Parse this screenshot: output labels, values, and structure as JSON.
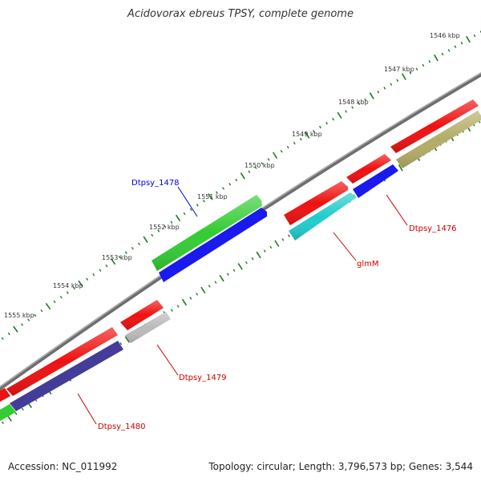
{
  "title": "Acidovorax ebreus TPSY, complete genome",
  "footer": {
    "accession": "Accession: NC_011992",
    "summary": "Topology: circular; Length: 3,796,573 bp; Genes: 3,544"
  },
  "ruler": [
    "1546 kbp",
    "1547 kbp",
    "1548 kbp",
    "1549 kbp",
    "1550 kbp",
    "1551 kbp",
    "1552 kbp",
    "1553 kbp",
    "1554 kbp",
    "1555 kbp"
  ],
  "colors": {
    "backbone": "#808080",
    "ticks": "#1f7a1f",
    "label_forward": "#0000cc",
    "label_reverse": "#cc0000"
  },
  "genes": {
    "dtpsy_1478": {
      "label": "Dtpsy_1478",
      "color": "#33cc33",
      "strand": "forward"
    },
    "forward_blue": {
      "color": "#1a1aee",
      "strand": "forward"
    },
    "dtpsy_1476": {
      "label": "Dtpsy_1476",
      "color": "#1a1aee",
      "strand": "reverse"
    },
    "glmM": {
      "label": "glmM",
      "color": "#22cccc",
      "strand": "reverse"
    },
    "dtpsy_1479": {
      "label": "Dtpsy_1479",
      "color": "#bbbbbb",
      "strand": "reverse"
    },
    "dtpsy_1480": {
      "label": "Dtpsy_1480",
      "color": "#443c99",
      "strand": "reverse"
    },
    "olive_gene": {
      "color": "#b3ac66",
      "strand": "reverse"
    },
    "red_genes": {
      "color": "#ee1111"
    },
    "green_edge_gene": {
      "color": "#33cc33"
    }
  }
}
